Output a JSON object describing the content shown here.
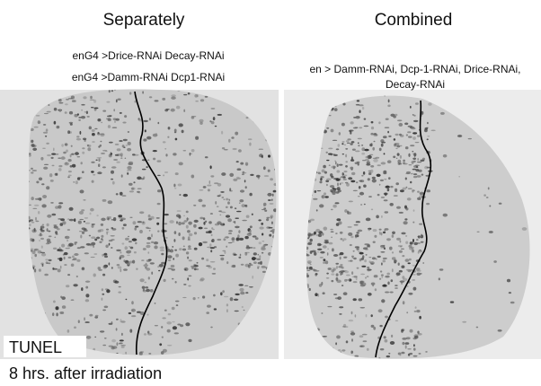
{
  "panels": [
    {
      "title": "Separately",
      "genotype": [
        "enG4 >Drice-RNAi Decay-RNAi",
        "enG4 >Damm-RNAi Dcp1-RNAi"
      ]
    },
    {
      "title": "Combined",
      "genotype": [
        "en > Damm-RNAi, Dcp-1-RNAi, Drice-RNAi,",
        "Decay-RNAi"
      ]
    }
  ],
  "labels": [
    "TUNEL",
    "8 hrs. after irradiation"
  ]
}
